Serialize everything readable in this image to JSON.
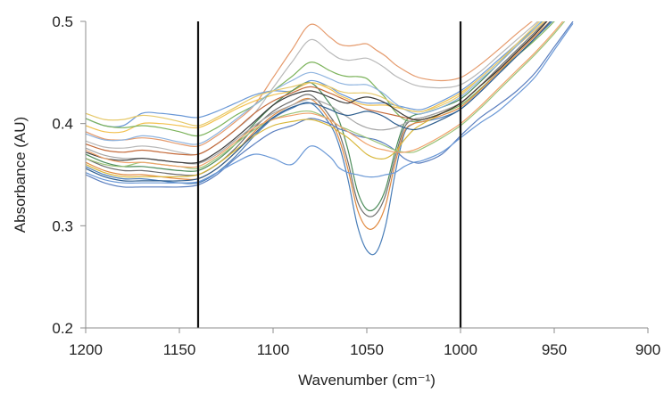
{
  "chart_data": {
    "type": "line",
    "title": "",
    "xlabel": "Wavenumber (cm⁻¹)",
    "ylabel": "Absorbance (AU)",
    "x_reversed": true,
    "xlim": [
      1200,
      900
    ],
    "ylim": [
      0.2,
      0.5
    ],
    "x_ticks": [
      1200,
      1150,
      1100,
      1050,
      1000,
      950,
      900
    ],
    "y_ticks": [
      0.2,
      0.3,
      0.4,
      0.5
    ],
    "x_tick_labels": [
      "1200",
      "1150",
      "1100",
      "1050",
      "1000",
      "950",
      "900"
    ],
    "y_tick_labels": [
      "0.2",
      "0.3",
      "0.4",
      "0.5"
    ],
    "grid": false,
    "legend": "none",
    "vertical_markers": [
      1140,
      1000
    ],
    "marker_color": "#111111",
    "axis_color": "#8c8c8c",
    "x": [
      1200,
      1190,
      1180,
      1170,
      1160,
      1150,
      1140,
      1130,
      1120,
      1110,
      1100,
      1090,
      1080,
      1070,
      1065,
      1060,
      1055,
      1050,
      1045,
      1040,
      1035,
      1030,
      1025,
      1020,
      1010,
      1000,
      990,
      980,
      970,
      960,
      950,
      940
    ],
    "series": [
      {
        "color": "#e59a6c",
        "values": [
          0.392,
          0.385,
          0.384,
          0.386,
          0.384,
          0.38,
          0.378,
          0.388,
          0.402,
          0.418,
          0.445,
          0.472,
          0.497,
          0.485,
          0.478,
          0.476,
          0.477,
          0.478,
          0.472,
          0.466,
          0.458,
          0.452,
          0.447,
          0.444,
          0.442,
          0.445,
          0.457,
          0.472,
          0.488,
          0.503,
          0.52,
          0.54
        ]
      },
      {
        "color": "#b8b8b8",
        "values": [
          0.383,
          0.377,
          0.376,
          0.378,
          0.376,
          0.372,
          0.37,
          0.38,
          0.394,
          0.41,
          0.435,
          0.46,
          0.482,
          0.47,
          0.464,
          0.462,
          0.463,
          0.464,
          0.46,
          0.454,
          0.447,
          0.442,
          0.438,
          0.436,
          0.435,
          0.438,
          0.45,
          0.466,
          0.482,
          0.498,
          0.515,
          0.535
        ]
      },
      {
        "color": "#6a98d6",
        "values": [
          0.405,
          0.398,
          0.398,
          0.41,
          0.41,
          0.408,
          0.406,
          0.412,
          0.42,
          0.428,
          0.432,
          0.432,
          0.442,
          0.436,
          0.43,
          0.426,
          0.422,
          0.42,
          0.42,
          0.42,
          0.418,
          0.416,
          0.414,
          0.414,
          0.422,
          0.432,
          0.446,
          0.462,
          0.478,
          0.494,
          0.512,
          0.532
        ]
      },
      {
        "color": "#f2c14e",
        "values": [
          0.398,
          0.392,
          0.392,
          0.4,
          0.4,
          0.398,
          0.396,
          0.404,
          0.414,
          0.422,
          0.428,
          0.432,
          0.44,
          0.434,
          0.428,
          0.424,
          0.42,
          0.418,
          0.418,
          0.418,
          0.416,
          0.414,
          0.412,
          0.412,
          0.42,
          0.43,
          0.444,
          0.46,
          0.476,
          0.492,
          0.51,
          0.53
        ]
      },
      {
        "color": "#7cb35b",
        "values": [
          0.405,
          0.398,
          0.396,
          0.398,
          0.396,
          0.392,
          0.388,
          0.396,
          0.408,
          0.418,
          0.432,
          0.446,
          0.46,
          0.452,
          0.448,
          0.446,
          0.446,
          0.444,
          0.435,
          0.425,
          0.412,
          0.404,
          0.402,
          0.404,
          0.41,
          0.418,
          0.433,
          0.45,
          0.466,
          0.482,
          0.5,
          0.52
        ]
      },
      {
        "color": "#4a7eb8",
        "values": [
          0.358,
          0.35,
          0.346,
          0.346,
          0.344,
          0.342,
          0.342,
          0.352,
          0.368,
          0.388,
          0.405,
          0.415,
          0.42,
          0.4,
          0.38,
          0.345,
          0.3,
          0.276,
          0.274,
          0.3,
          0.35,
          0.39,
          0.4,
          0.402,
          0.406,
          0.414,
          0.43,
          0.448,
          0.466,
          0.484,
          0.502,
          0.522
        ]
      },
      {
        "color": "#e0893f",
        "values": [
          0.362,
          0.354,
          0.35,
          0.35,
          0.348,
          0.346,
          0.346,
          0.356,
          0.372,
          0.392,
          0.408,
          0.418,
          0.424,
          0.404,
          0.386,
          0.355,
          0.316,
          0.298,
          0.3,
          0.32,
          0.36,
          0.392,
          0.4,
          0.402,
          0.408,
          0.416,
          0.432,
          0.45,
          0.468,
          0.486,
          0.504,
          0.524
        ]
      },
      {
        "color": "#6e6e6e",
        "values": [
          0.366,
          0.358,
          0.354,
          0.354,
          0.352,
          0.35,
          0.35,
          0.36,
          0.376,
          0.396,
          0.412,
          0.422,
          0.428,
          0.408,
          0.392,
          0.362,
          0.324,
          0.31,
          0.312,
          0.33,
          0.366,
          0.396,
          0.404,
          0.406,
          0.412,
          0.42,
          0.436,
          0.454,
          0.472,
          0.49,
          0.508,
          0.528
        ]
      },
      {
        "color": "#4c8c5a",
        "values": [
          0.37,
          0.362,
          0.358,
          0.358,
          0.356,
          0.354,
          0.354,
          0.364,
          0.38,
          0.4,
          0.418,
          0.432,
          0.44,
          0.42,
          0.404,
          0.374,
          0.334,
          0.316,
          0.318,
          0.336,
          0.372,
          0.4,
          0.408,
          0.41,
          0.416,
          0.424,
          0.44,
          0.458,
          0.476,
          0.494,
          0.512,
          0.532
        ]
      },
      {
        "color": "#5b7fbf",
        "values": [
          0.35,
          0.342,
          0.338,
          0.338,
          0.338,
          0.338,
          0.34,
          0.35,
          0.366,
          0.38,
          0.392,
          0.398,
          0.405,
          0.4,
          0.395,
          0.392,
          0.388,
          0.386,
          0.384,
          0.38,
          0.374,
          0.366,
          0.362,
          0.362,
          0.37,
          0.388,
          0.405,
          0.418,
          0.432,
          0.45,
          0.475,
          0.5
        ]
      },
      {
        "color": "#d8b73a",
        "values": [
          0.36,
          0.352,
          0.348,
          0.348,
          0.348,
          0.348,
          0.35,
          0.36,
          0.374,
          0.388,
          0.398,
          0.402,
          0.404,
          0.398,
          0.392,
          0.386,
          0.378,
          0.37,
          0.366,
          0.366,
          0.372,
          0.384,
          0.394,
          0.4,
          0.41,
          0.42,
          0.436,
          0.452,
          0.47,
          0.488,
          0.508,
          0.528
        ]
      },
      {
        "color": "#6a98d6",
        "values": [
          0.352,
          0.345,
          0.342,
          0.342,
          0.342,
          0.342,
          0.343,
          0.352,
          0.362,
          0.37,
          0.366,
          0.36,
          0.378,
          0.368,
          0.357,
          0.352,
          0.35,
          0.348,
          0.348,
          0.35,
          0.352,
          0.358,
          0.362,
          0.364,
          0.372,
          0.386,
          0.4,
          0.412,
          0.428,
          0.446,
          0.472,
          0.498
        ]
      },
      {
        "color": "#a6a6a6",
        "values": [
          0.376,
          0.369,
          0.366,
          0.366,
          0.364,
          0.362,
          0.361,
          0.37,
          0.384,
          0.398,
          0.41,
          0.418,
          0.424,
          0.418,
          0.412,
          0.406,
          0.4,
          0.396,
          0.394,
          0.394,
          0.396,
          0.4,
          0.404,
          0.406,
          0.412,
          0.42,
          0.436,
          0.452,
          0.47,
          0.488,
          0.508,
          0.528
        ]
      },
      {
        "color": "#c46a3a",
        "values": [
          0.38,
          0.374,
          0.372,
          0.374,
          0.372,
          0.37,
          0.37,
          0.38,
          0.394,
          0.41,
          0.422,
          0.43,
          0.436,
          0.43,
          0.426,
          0.422,
          0.418,
          0.414,
          0.412,
          0.41,
          0.408,
          0.406,
          0.404,
          0.404,
          0.41,
          0.42,
          0.436,
          0.452,
          0.47,
          0.488,
          0.508,
          0.528
        ]
      },
      {
        "color": "#3b3b3b",
        "values": [
          0.372,
          0.366,
          0.364,
          0.366,
          0.364,
          0.362,
          0.362,
          0.372,
          0.386,
          0.402,
          0.418,
          0.428,
          0.432,
          0.426,
          0.422,
          0.42,
          0.424,
          0.426,
          0.424,
          0.42,
          0.414,
          0.408,
          0.404,
          0.404,
          0.41,
          0.42,
          0.436,
          0.452,
          0.47,
          0.488,
          0.508,
          0.528
        ]
      },
      {
        "color": "#8fb4df",
        "values": [
          0.39,
          0.384,
          0.384,
          0.388,
          0.386,
          0.382,
          0.38,
          0.39,
          0.404,
          0.418,
          0.432,
          0.442,
          0.45,
          0.444,
          0.44,
          0.438,
          0.438,
          0.438,
          0.434,
          0.428,
          0.42,
          0.414,
          0.41,
          0.41,
          0.416,
          0.426,
          0.442,
          0.458,
          0.476,
          0.494,
          0.514,
          0.534
        ]
      },
      {
        "color": "#9cc47a",
        "values": [
          0.366,
          0.36,
          0.358,
          0.362,
          0.36,
          0.358,
          0.356,
          0.366,
          0.38,
          0.394,
          0.404,
          0.41,
          0.412,
          0.404,
          0.398,
          0.394,
          0.39,
          0.386,
          0.382,
          0.378,
          0.374,
          0.372,
          0.372,
          0.376,
          0.386,
          0.398,
          0.414,
          0.432,
          0.45,
          0.468,
          0.488,
          0.51
        ]
      },
      {
        "color": "#f0a26a",
        "values": [
          0.374,
          0.366,
          0.362,
          0.362,
          0.36,
          0.358,
          0.358,
          0.368,
          0.382,
          0.396,
          0.404,
          0.408,
          0.41,
          0.404,
          0.398,
          0.392,
          0.386,
          0.38,
          0.376,
          0.374,
          0.372,
          0.372,
          0.374,
          0.378,
          0.388,
          0.4,
          0.416,
          0.434,
          0.452,
          0.47,
          0.49,
          0.512
        ]
      },
      {
        "color": "#2f5f8f",
        "values": [
          0.356,
          0.348,
          0.344,
          0.344,
          0.344,
          0.344,
          0.346,
          0.356,
          0.372,
          0.39,
          0.406,
          0.416,
          0.42,
          0.414,
          0.41,
          0.408,
          0.41,
          0.412,
          0.41,
          0.406,
          0.4,
          0.396,
          0.394,
          0.396,
          0.404,
          0.414,
          0.43,
          0.448,
          0.466,
          0.484,
          0.504,
          0.524
        ]
      },
      {
        "color": "#e6c96a",
        "values": [
          0.41,
          0.404,
          0.404,
          0.408,
          0.406,
          0.402,
          0.398,
          0.406,
          0.416,
          0.426,
          0.432,
          0.436,
          0.44,
          0.436,
          0.432,
          0.43,
          0.43,
          0.43,
          0.428,
          0.424,
          0.418,
          0.414,
          0.412,
          0.412,
          0.418,
          0.428,
          0.444,
          0.46,
          0.478,
          0.496,
          0.516,
          0.536
        ]
      }
    ]
  }
}
